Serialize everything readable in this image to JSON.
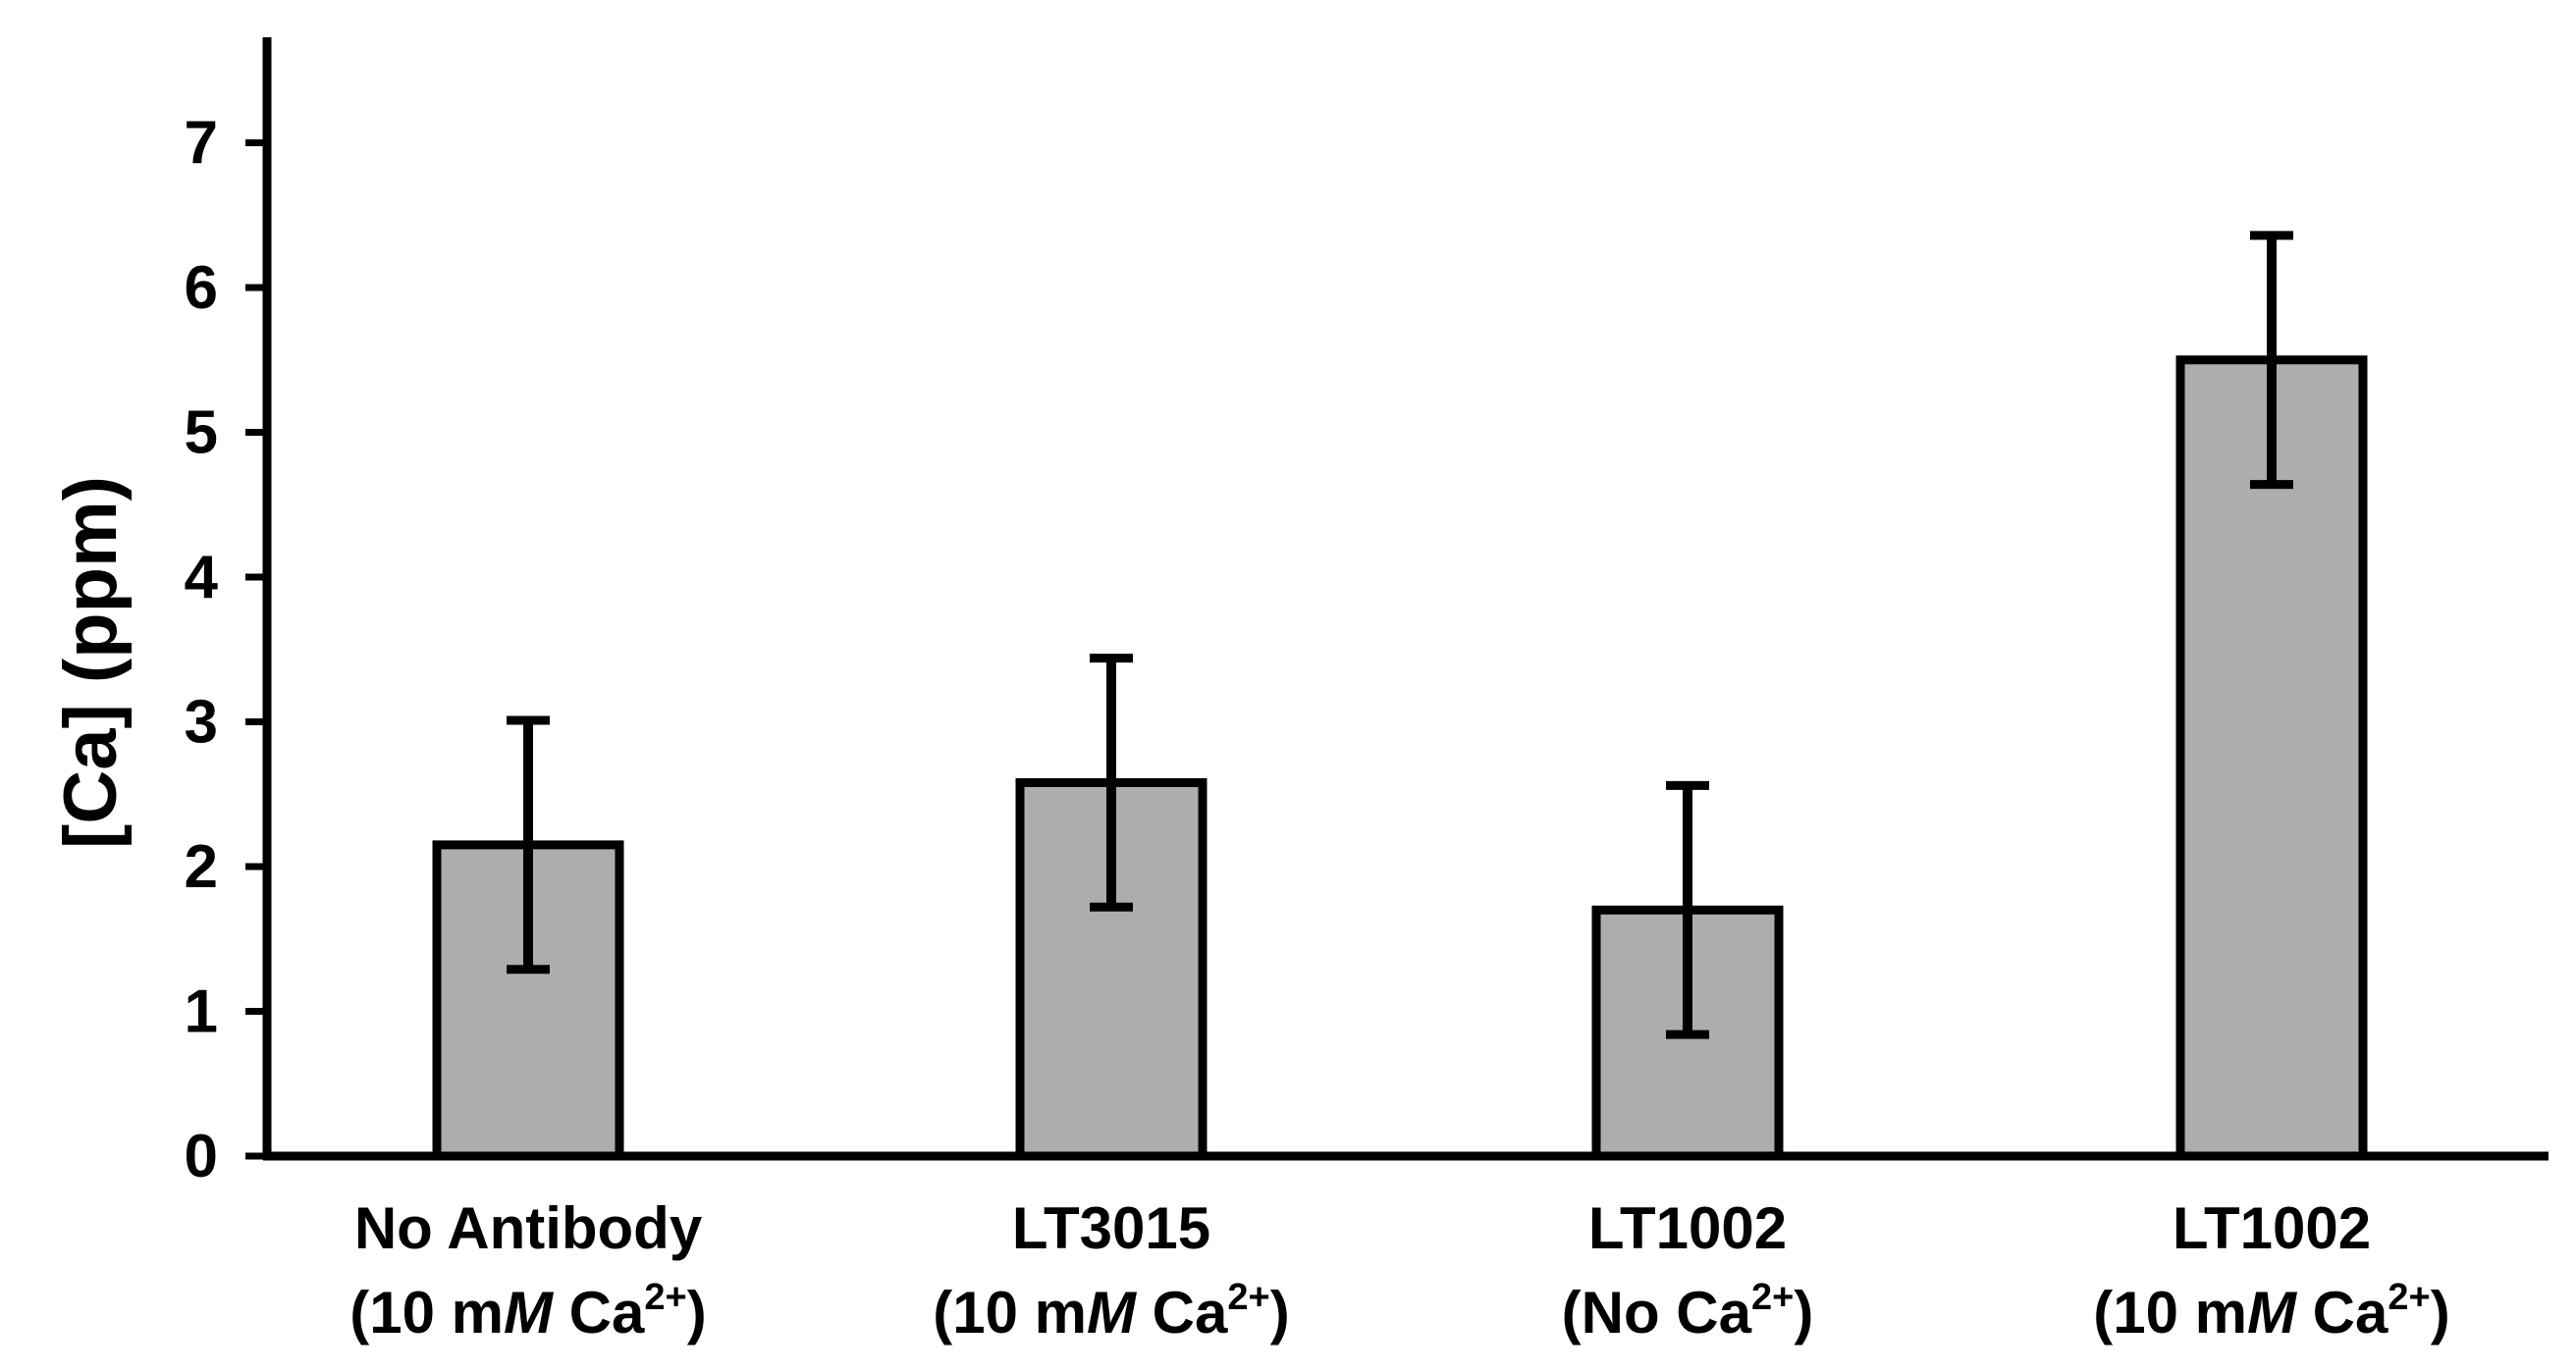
{
  "chart_data": {
    "type": "bar",
    "title": "",
    "xlabel": "",
    "ylabel": "[Ca] (ppm)",
    "ylim": [
      0,
      7.7
    ],
    "yticks": [
      "0",
      "1",
      "2",
      "3",
      "4",
      "5",
      "6",
      "7"
    ],
    "grid": false,
    "bar_color": "#adadad",
    "categories": [
      {
        "line1": "No Antibody",
        "line2_pre": "(10 m",
        "line2_unit": "M",
        "line2_mid": " Ca",
        "line2_sup": "2+",
        "line2_post": ")"
      },
      {
        "line1": "LT3015",
        "line2_pre": "(10 m",
        "line2_unit": "M",
        "line2_mid": " Ca",
        "line2_sup": "2+",
        "line2_post": ")"
      },
      {
        "line1": "LT1002",
        "line2_pre": "(No Ca",
        "line2_unit": "",
        "line2_mid": "",
        "line2_sup": "2+",
        "line2_post": ")"
      },
      {
        "line1": "LT1002",
        "line2_pre": "(10 m",
        "line2_unit": "M",
        "line2_mid": " Ca",
        "line2_sup": "2+",
        "line2_post": ")"
      }
    ],
    "values": [
      2.15,
      2.58,
      1.7,
      5.5
    ],
    "errors": [
      0.86,
      0.86,
      0.86,
      0.86
    ]
  }
}
